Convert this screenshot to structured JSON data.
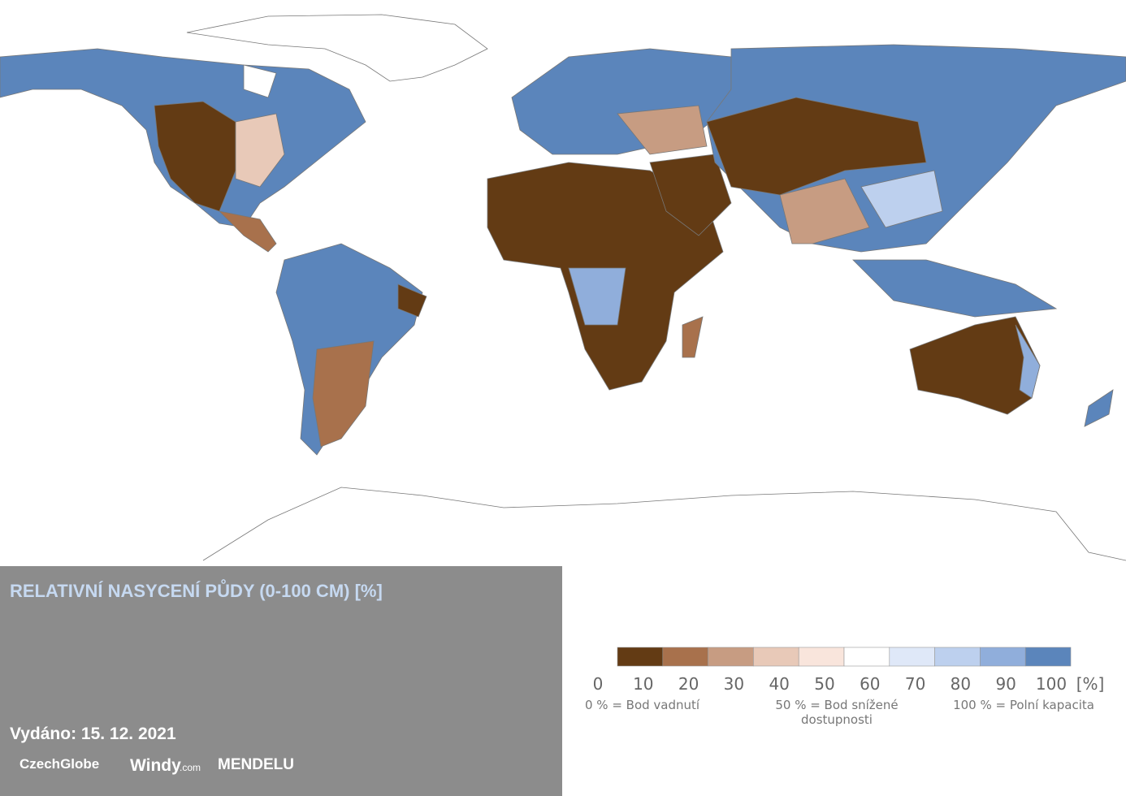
{
  "map": {
    "title": "RELATIVNÍ NASYCENÍ PŮDY (0-100 CM) [%]",
    "issued": "Vydáno: 15. 12. 2021",
    "logos": [
      "CzechGlobe",
      "Windy",
      ".com",
      "MENDELU"
    ],
    "legend": {
      "colors": [
        "#633b14",
        "#a8714c",
        "#c79c82",
        "#e8c9b8",
        "#f9e5dc",
        "#ffffff",
        "#dfe8f8",
        "#bdd0ee",
        "#90aedb",
        "#5b85bb"
      ],
      "ticks": [
        0,
        10,
        20,
        30,
        40,
        50,
        60,
        70,
        80,
        90,
        100
      ],
      "unit": "[%]",
      "notes": [
        "0 % = Bod vadnutí",
        "50 % = Bod snížené dostupnosti",
        "100 % = Polní kapacita"
      ]
    }
  }
}
